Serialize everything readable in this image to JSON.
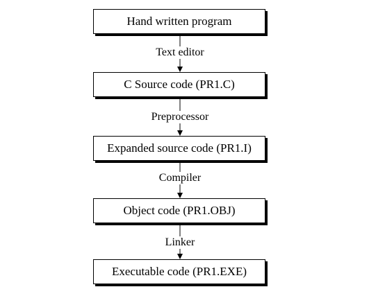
{
  "steps": [
    {
      "label": "Hand written program"
    },
    {
      "label": "C Source code (PR1.C)"
    },
    {
      "label": "Expanded source code (PR1.I)"
    },
    {
      "label": "Object code (PR1.OBJ)"
    },
    {
      "label": "Executable code (PR1.EXE)"
    }
  ],
  "transitions": [
    {
      "label": "Text editor"
    },
    {
      "label": "Preprocessor"
    },
    {
      "label": "Compiler"
    },
    {
      "label": "Linker"
    }
  ]
}
